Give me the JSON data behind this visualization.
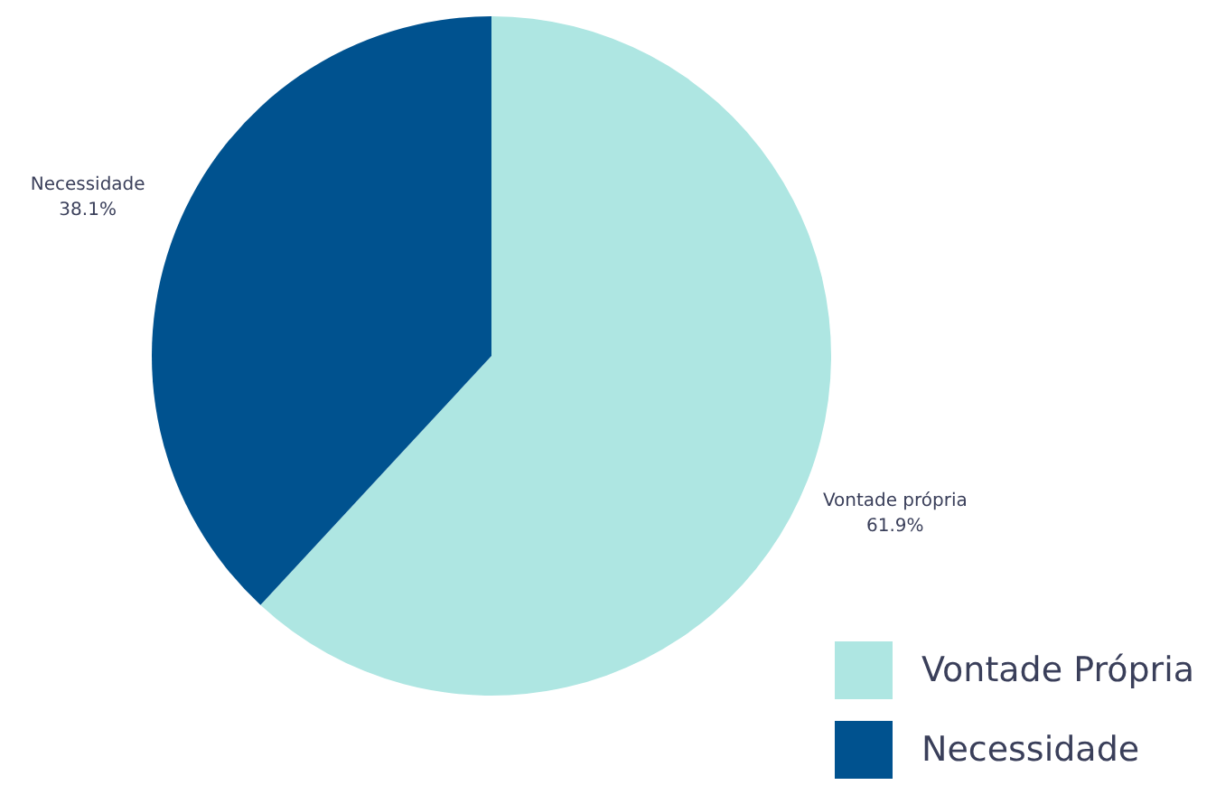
{
  "chart_data": {
    "type": "pie",
    "categories": [
      "Vontade Própria",
      "Necessidade"
    ],
    "values": [
      61.9,
      38.1
    ],
    "colors": [
      "#aee6e2",
      "#00528f"
    ],
    "value_labels": [
      "61.9%",
      "38.1%"
    ],
    "annotations": [
      "Vontade própria",
      "Necessidade"
    ],
    "legend": "bottom right"
  }
}
